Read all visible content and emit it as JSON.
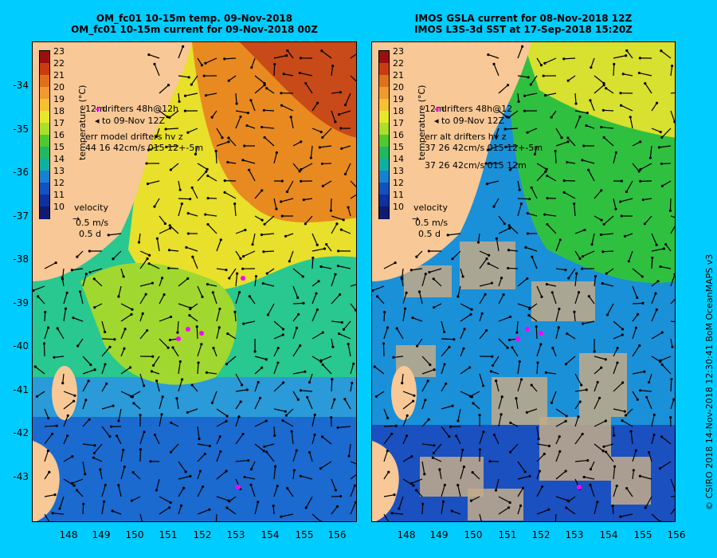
{
  "left_panel": {
    "title_line1": "OM_fc01 10-15m temp. 09-Nov-2018",
    "title_line2": "OM_fc01 10-15m current for 09-Nov-2018 00Z",
    "legend_drifters": "drifters 48h@12h",
    "legend_to": "to 09-Nov 12Z",
    "legend_err": "err model drifters hv z",
    "legend_err_values": "44 16 42cm/s 015 12+-5m",
    "velocity_label": "velocity",
    "velocity_scale": "0.5 m/s",
    "velocity_time": "0.5 d",
    "legend_side_letters": "12m"
  },
  "right_panel": {
    "title_line1": "IMOS GSLA current for 08-Nov-2018 12Z",
    "title_line2": "IMOS L3S-3d SST at 17-Sep-2018 15:20Z",
    "legend_drifters": "drifters 48h@12",
    "legend_to": "to 09-Nov 12Z",
    "legend_err": "err alt drifters hv z",
    "legend_err_values": "37 26 42cm/s 015 12+-5m",
    "legend_err_values2": "37 26 42cm/s 015 12m",
    "velocity_label": "velocity",
    "velocity_scale": "0.5 m/s",
    "velocity_time": "0.5 d",
    "legend_side_letters": "12m"
  },
  "colorbar": {
    "title": "temperature (°C)",
    "ticks": [
      "23",
      "22",
      "21",
      "20",
      "19",
      "18",
      "17",
      "16",
      "15",
      "14",
      "13",
      "12",
      "11",
      "10"
    ],
    "colors": [
      "#9a1010",
      "#c83c10",
      "#e0701a",
      "#f09a30",
      "#f6c030",
      "#e8e82a",
      "#a8e02a",
      "#50c830",
      "#20b860",
      "#10b0a0",
      "#1880d0",
      "#1450c0",
      "#1030a0",
      "#101a70"
    ]
  },
  "latitude_ticks": [
    "-34",
    "-35",
    "-36",
    "-37",
    "-38",
    "-39",
    "-40",
    "-41",
    "-42",
    "-43"
  ],
  "longitude_ticks": [
    "148",
    "149",
    "150",
    "151",
    "152",
    "153",
    "154",
    "155",
    "156"
  ],
  "credit": "© CSIRO 2018  14-Nov-2018 12:30:41  BoM OceanMAPS v3",
  "colors": {
    "background": "#00ccff",
    "land": "#f8c896",
    "cloud_mask": "#c4aa88",
    "drifter": "#ff00ff",
    "arrow": "#000000"
  }
}
